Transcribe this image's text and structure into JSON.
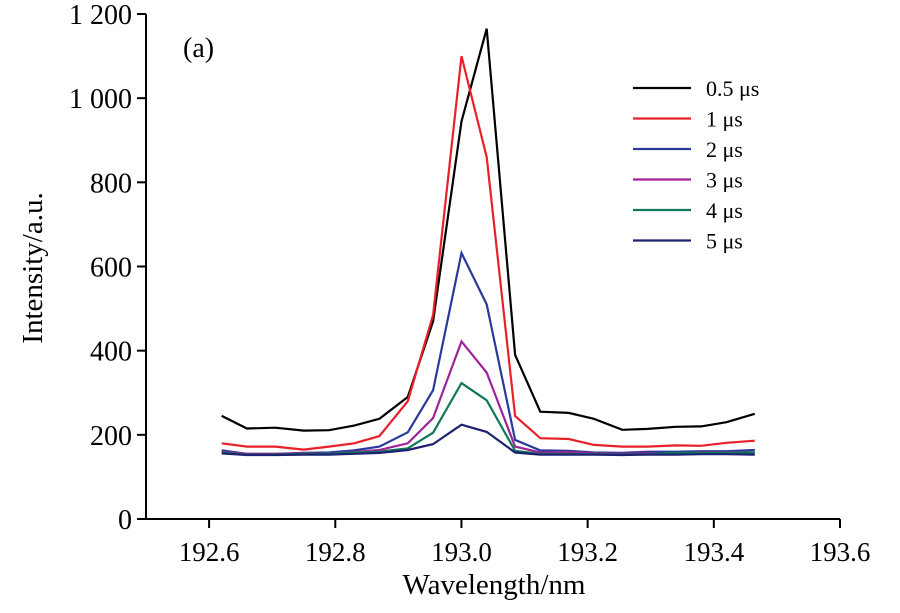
{
  "chart_data": {
    "type": "line",
    "panel_label": "(a)",
    "title": "",
    "xlabel": "Wavelength/nm",
    "ylabel": "Intensity/a.u.",
    "xlim": [
      192.5,
      193.6
    ],
    "ylim": [
      0,
      1200
    ],
    "x_ticks": [
      192.6,
      192.8,
      193.0,
      193.2,
      193.4,
      193.6
    ],
    "x_tick_labels": [
      "192.6",
      "192.8",
      "193.0",
      "193.2",
      "193.4",
      "193.6"
    ],
    "y_ticks": [
      0,
      200,
      400,
      600,
      800,
      1000,
      1200
    ],
    "y_tick_labels": [
      "0",
      "200",
      "400",
      "600",
      "800",
      "1 000",
      "1 200"
    ],
    "grid": false,
    "legend_position": "top-right",
    "x": [
      192.62,
      192.66,
      192.705,
      192.75,
      192.79,
      192.83,
      192.87,
      192.915,
      192.955,
      193.0,
      193.04,
      193.085,
      193.125,
      193.17,
      193.21,
      193.255,
      193.295,
      193.34,
      193.38,
      193.42,
      193.465
    ],
    "series": [
      {
        "name": "0.5 μs",
        "color": "#000000",
        "values": [
          245,
          215,
          217,
          210,
          211,
          222,
          238,
          290,
          470,
          945,
          1165,
          390,
          255,
          252,
          238,
          212,
          214,
          219,
          220,
          230,
          250
        ]
      },
      {
        "name": "1 μs",
        "color": "#e8202a",
        "values": [
          180,
          172,
          172,
          165,
          172,
          180,
          197,
          280,
          485,
          1100,
          860,
          245,
          192,
          190,
          176,
          172,
          172,
          175,
          174,
          181,
          186
        ]
      },
      {
        "name": "2 μs",
        "color": "#2a3a9a",
        "values": [
          163,
          155,
          155,
          157,
          158,
          163,
          172,
          206,
          306,
          632,
          510,
          188,
          163,
          162,
          158,
          157,
          160,
          160,
          161,
          161,
          164
        ]
      },
      {
        "name": "3 μs",
        "color": "#a0229a",
        "values": [
          160,
          155,
          155,
          156,
          155,
          159,
          164,
          180,
          240,
          422,
          348,
          172,
          158,
          159,
          156,
          155,
          156,
          155,
          158,
          158,
          158
        ]
      },
      {
        "name": "4 μs",
        "color": "#11795a",
        "values": [
          158,
          153,
          153,
          155,
          155,
          158,
          160,
          168,
          205,
          323,
          282,
          162,
          155,
          155,
          154,
          153,
          154,
          157,
          157,
          157,
          158
        ]
      },
      {
        "name": "5 μs",
        "color": "#1c2170",
        "values": [
          156,
          152,
          152,
          153,
          153,
          155,
          157,
          164,
          178,
          224,
          207,
          158,
          153,
          153,
          153,
          152,
          153,
          153,
          154,
          154,
          153
        ]
      }
    ]
  }
}
